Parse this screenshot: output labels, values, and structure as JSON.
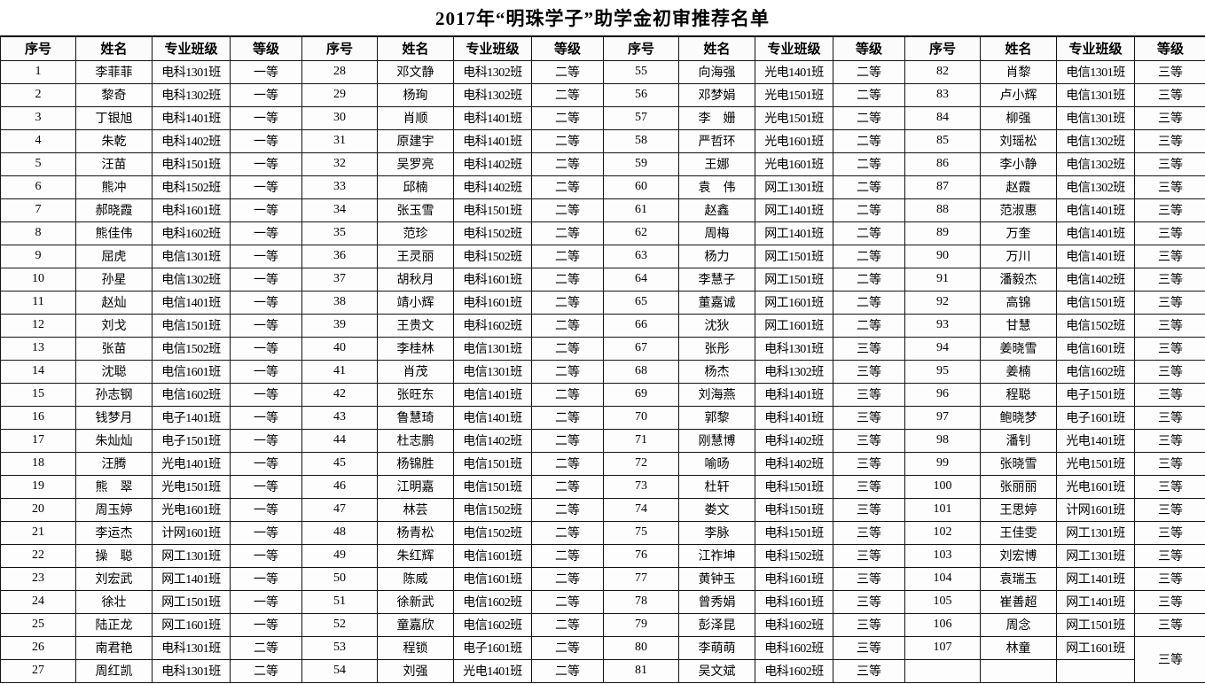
{
  "title": "2017年“明珠学子”助学金初审推荐名单",
  "table": {
    "column_headers": [
      "序号",
      "姓名",
      "专业班级",
      "等级"
    ],
    "column_groups": 4,
    "rows_per_group": 27,
    "entries": [
      {
        "no": "1",
        "name": "李菲菲",
        "class": "电科1301班",
        "grade": "一等"
      },
      {
        "no": "2",
        "name": "黎奇",
        "class": "电科1302班",
        "grade": "一等"
      },
      {
        "no": "3",
        "name": "丁银旭",
        "class": "电科1401班",
        "grade": "一等"
      },
      {
        "no": "4",
        "name": "朱乾",
        "class": "电科1402班",
        "grade": "一等"
      },
      {
        "no": "5",
        "name": "汪苗",
        "class": "电科1501班",
        "grade": "一等"
      },
      {
        "no": "6",
        "name": "熊冲",
        "class": "电科1502班",
        "grade": "一等"
      },
      {
        "no": "7",
        "name": "郝晓霞",
        "class": "电科1601班",
        "grade": "一等"
      },
      {
        "no": "8",
        "name": "熊佳伟",
        "class": "电科1602班",
        "grade": "一等"
      },
      {
        "no": "9",
        "name": "屈虎",
        "class": "电信1301班",
        "grade": "一等"
      },
      {
        "no": "10",
        "name": "孙星",
        "class": "电信1302班",
        "grade": "一等"
      },
      {
        "no": "11",
        "name": "赵灿",
        "class": "电信1401班",
        "grade": "一等"
      },
      {
        "no": "12",
        "name": "刘戈",
        "class": "电信1501班",
        "grade": "一等"
      },
      {
        "no": "13",
        "name": "张苗",
        "class": "电信1502班",
        "grade": "一等"
      },
      {
        "no": "14",
        "name": "沈聪",
        "class": "电信1601班",
        "grade": "一等"
      },
      {
        "no": "15",
        "name": "孙志钢",
        "class": "电信1602班",
        "grade": "一等"
      },
      {
        "no": "16",
        "name": "钱梦月",
        "class": "电子1401班",
        "grade": "一等"
      },
      {
        "no": "17",
        "name": "朱灿灿",
        "class": "电子1501班",
        "grade": "一等"
      },
      {
        "no": "18",
        "name": "汪腾",
        "class": "光电1401班",
        "grade": "一等"
      },
      {
        "no": "19",
        "name": "熊　翠",
        "class": "光电1501班",
        "grade": "一等"
      },
      {
        "no": "20",
        "name": "周玉婷",
        "class": "光电1601班",
        "grade": "一等"
      },
      {
        "no": "21",
        "name": "李运杰",
        "class": "计网1601班",
        "grade": "一等"
      },
      {
        "no": "22",
        "name": "操　聪",
        "class": "网工1301班",
        "grade": "一等"
      },
      {
        "no": "23",
        "name": "刘宏武",
        "class": "网工1401班",
        "grade": "一等"
      },
      {
        "no": "24",
        "name": "徐壮",
        "class": "网工1501班",
        "grade": "一等"
      },
      {
        "no": "25",
        "name": "陆正龙",
        "class": "网工1601班",
        "grade": "一等"
      },
      {
        "no": "26",
        "name": "南君艳",
        "class": "电科1301班",
        "grade": "二等"
      },
      {
        "no": "27",
        "name": "周红凯",
        "class": "电科1301班",
        "grade": "二等"
      },
      {
        "no": "28",
        "name": "邓文静",
        "class": "电科1302班",
        "grade": "二等"
      },
      {
        "no": "29",
        "name": "杨珣",
        "class": "电科1302班",
        "grade": "二等"
      },
      {
        "no": "30",
        "name": "肖顺",
        "class": "电科1401班",
        "grade": "二等"
      },
      {
        "no": "31",
        "name": "原建宇",
        "class": "电科1401班",
        "grade": "二等"
      },
      {
        "no": "32",
        "name": "吴罗亮",
        "class": "电科1402班",
        "grade": "二等"
      },
      {
        "no": "33",
        "name": "邱楠",
        "class": "电科1402班",
        "grade": "二等"
      },
      {
        "no": "34",
        "name": "张玉雪",
        "class": "电科1501班",
        "grade": "二等"
      },
      {
        "no": "35",
        "name": "范珍",
        "class": "电科1502班",
        "grade": "二等"
      },
      {
        "no": "36",
        "name": "王灵丽",
        "class": "电科1502班",
        "grade": "二等"
      },
      {
        "no": "37",
        "name": "胡秋月",
        "class": "电科1601班",
        "grade": "二等"
      },
      {
        "no": "38",
        "name": "靖小辉",
        "class": "电科1601班",
        "grade": "二等"
      },
      {
        "no": "39",
        "name": "王贵文",
        "class": "电科1602班",
        "grade": "二等"
      },
      {
        "no": "40",
        "name": "李桂林",
        "class": "电信1301班",
        "grade": "二等"
      },
      {
        "no": "41",
        "name": "肖茂",
        "class": "电信1301班",
        "grade": "二等"
      },
      {
        "no": "42",
        "name": "张旺东",
        "class": "电信1401班",
        "grade": "二等"
      },
      {
        "no": "43",
        "name": "鲁慧琦",
        "class": "电信1401班",
        "grade": "二等"
      },
      {
        "no": "44",
        "name": "杜志鹏",
        "class": "电信1402班",
        "grade": "二等"
      },
      {
        "no": "45",
        "name": "杨锦胜",
        "class": "电信1501班",
        "grade": "二等"
      },
      {
        "no": "46",
        "name": "江明嘉",
        "class": "电信1501班",
        "grade": "二等"
      },
      {
        "no": "47",
        "name": "林芸",
        "class": "电信1502班",
        "grade": "二等"
      },
      {
        "no": "48",
        "name": "杨青松",
        "class": "电信1502班",
        "grade": "二等"
      },
      {
        "no": "49",
        "name": "朱红辉",
        "class": "电信1601班",
        "grade": "二等"
      },
      {
        "no": "50",
        "name": "陈威",
        "class": "电信1601班",
        "grade": "二等"
      },
      {
        "no": "51",
        "name": "徐新武",
        "class": "电信1602班",
        "grade": "二等"
      },
      {
        "no": "52",
        "name": "童嘉欣",
        "class": "电信1602班",
        "grade": "二等"
      },
      {
        "no": "53",
        "name": "程锁",
        "class": "电子1601班",
        "grade": "二等"
      },
      {
        "no": "54",
        "name": "刘强",
        "class": "光电1401班",
        "grade": "二等"
      },
      {
        "no": "55",
        "name": "向海强",
        "class": "光电1401班",
        "grade": "二等"
      },
      {
        "no": "56",
        "name": "邓梦娟",
        "class": "光电1501班",
        "grade": "二等"
      },
      {
        "no": "57",
        "name": "李　姗",
        "class": "光电1501班",
        "grade": "二等"
      },
      {
        "no": "58",
        "name": "严哲环",
        "class": "光电1601班",
        "grade": "二等"
      },
      {
        "no": "59",
        "name": "王娜",
        "class": "光电1601班",
        "grade": "二等"
      },
      {
        "no": "60",
        "name": "袁　伟",
        "class": "网工1301班",
        "grade": "二等"
      },
      {
        "no": "61",
        "name": "赵鑫",
        "class": "网工1401班",
        "grade": "二等"
      },
      {
        "no": "62",
        "name": "周梅",
        "class": "网工1401班",
        "grade": "二等"
      },
      {
        "no": "63",
        "name": "杨力",
        "class": "网工1501班",
        "grade": "二等"
      },
      {
        "no": "64",
        "name": "李慧子",
        "class": "网工1501班",
        "grade": "二等"
      },
      {
        "no": "65",
        "name": "董嘉诚",
        "class": "网工1601班",
        "grade": "二等"
      },
      {
        "no": "66",
        "name": "沈狄",
        "class": "网工1601班",
        "grade": "二等"
      },
      {
        "no": "67",
        "name": "张彤",
        "class": "电科1301班",
        "grade": "三等"
      },
      {
        "no": "68",
        "name": "杨杰",
        "class": "电科1302班",
        "grade": "三等"
      },
      {
        "no": "69",
        "name": "刘海燕",
        "class": "电科1401班",
        "grade": "三等"
      },
      {
        "no": "70",
        "name": "郭黎",
        "class": "电科1401班",
        "grade": "三等"
      },
      {
        "no": "71",
        "name": "刚慧博",
        "class": "电科1402班",
        "grade": "三等"
      },
      {
        "no": "72",
        "name": "喻旸",
        "class": "电科1402班",
        "grade": "三等"
      },
      {
        "no": "73",
        "name": "杜轩",
        "class": "电科1501班",
        "grade": "三等"
      },
      {
        "no": "74",
        "name": "娄文",
        "class": "电科1501班",
        "grade": "三等"
      },
      {
        "no": "75",
        "name": "李脉",
        "class": "电科1501班",
        "grade": "三等"
      },
      {
        "no": "76",
        "name": "江祚坤",
        "class": "电科1502班",
        "grade": "三等"
      },
      {
        "no": "77",
        "name": "黄钟玉",
        "class": "电科1601班",
        "grade": "三等"
      },
      {
        "no": "78",
        "name": "曾秀娟",
        "class": "电科1601班",
        "grade": "三等"
      },
      {
        "no": "79",
        "name": "彭泽昆",
        "class": "电科1602班",
        "grade": "三等"
      },
      {
        "no": "80",
        "name": "李萌萌",
        "class": "电科1602班",
        "grade": "三等"
      },
      {
        "no": "81",
        "name": "吴文斌",
        "class": "电科1602班",
        "grade": "三等"
      },
      {
        "no": "82",
        "name": "肖黎",
        "class": "电信1301班",
        "grade": "三等"
      },
      {
        "no": "83",
        "name": "卢小辉",
        "class": "电信1301班",
        "grade": "三等"
      },
      {
        "no": "84",
        "name": "柳强",
        "class": "电信1301班",
        "grade": "三等"
      },
      {
        "no": "85",
        "name": "刘瑶松",
        "class": "电信1302班",
        "grade": "三等"
      },
      {
        "no": "86",
        "name": "李小静",
        "class": "电信1302班",
        "grade": "三等"
      },
      {
        "no": "87",
        "name": "赵霞",
        "class": "电信1302班",
        "grade": "三等"
      },
      {
        "no": "88",
        "name": "范淑惠",
        "class": "电信1401班",
        "grade": "三等"
      },
      {
        "no": "89",
        "name": "万奎",
        "class": "电信1401班",
        "grade": "三等"
      },
      {
        "no": "90",
        "name": "万川",
        "class": "电信1401班",
        "grade": "三等"
      },
      {
        "no": "91",
        "name": "潘毅杰",
        "class": "电信1402班",
        "grade": "三等"
      },
      {
        "no": "92",
        "name": "高锦",
        "class": "电信1501班",
        "grade": "三等"
      },
      {
        "no": "93",
        "name": "甘慧",
        "class": "电信1502班",
        "grade": "三等"
      },
      {
        "no": "94",
        "name": "姜晓雪",
        "class": "电信1601班",
        "grade": "三等"
      },
      {
        "no": "95",
        "name": "姜楠",
        "class": "电信1602班",
        "grade": "三等"
      },
      {
        "no": "96",
        "name": "程聪",
        "class": "电子1501班",
        "grade": "三等"
      },
      {
        "no": "97",
        "name": "鲍晓梦",
        "class": "电子1601班",
        "grade": "三等"
      },
      {
        "no": "98",
        "name": "潘钊",
        "class": "光电1401班",
        "grade": "三等"
      },
      {
        "no": "99",
        "name": "张晓雪",
        "class": "光电1501班",
        "grade": "三等"
      },
      {
        "no": "100",
        "name": "张丽丽",
        "class": "光电1601班",
        "grade": "三等"
      },
      {
        "no": "101",
        "name": "王思婷",
        "class": "计网1601班",
        "grade": "三等"
      },
      {
        "no": "102",
        "name": "王佳雯",
        "class": "网工1301班",
        "grade": "三等"
      },
      {
        "no": "103",
        "name": "刘宏博",
        "class": "网工1301班",
        "grade": "三等"
      },
      {
        "no": "104",
        "name": "袁瑞玉",
        "class": "网工1401班",
        "grade": "三等"
      },
      {
        "no": "105",
        "name": "崔善超",
        "class": "网工1401班",
        "grade": "三等"
      },
      {
        "no": "106",
        "name": "周念",
        "class": "网工1501班",
        "grade": "三等"
      },
      {
        "no": "107",
        "name": "林童",
        "class": "网工1601班",
        "grade": "三等"
      }
    ]
  }
}
